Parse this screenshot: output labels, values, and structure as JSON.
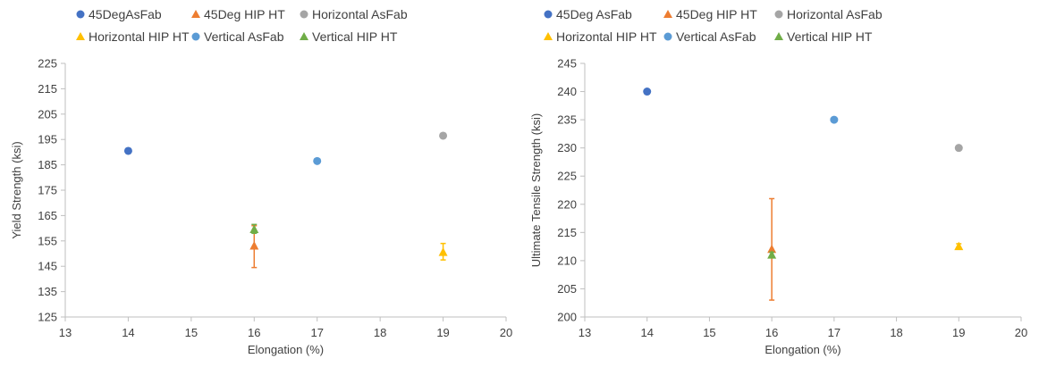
{
  "colors": {
    "dark_blue": "#4472C4",
    "orange": "#ED7D31",
    "gray": "#A5A5A5",
    "gold": "#FFC000",
    "light_blue": "#5B9BD5",
    "green": "#70AD47",
    "axis": "#BFBFBF",
    "text": "#404040"
  },
  "chart_data": [
    {
      "type": "scatter",
      "title": "",
      "xlabel": "Elongation (%)",
      "ylabel": "Yield Strength (ksi)",
      "xlim": [
        13,
        20
      ],
      "ylim": [
        125,
        225
      ],
      "xticks": [
        13,
        14,
        15,
        16,
        17,
        18,
        19,
        20
      ],
      "yticks": [
        125,
        135,
        145,
        155,
        165,
        175,
        185,
        195,
        205,
        215,
        225
      ],
      "grid": false,
      "legend_position": "top",
      "series": [
        {
          "name": "45DegAsFab",
          "marker": "circle",
          "color": "#4472C4",
          "points": [
            {
              "x": 14,
              "y": 190.5
            }
          ]
        },
        {
          "name": "45Deg HIP HT",
          "marker": "triangle",
          "color": "#ED7D31",
          "points": [
            {
              "x": 16,
              "y": 153,
              "err_low": 144.5,
              "err_high": 161
            }
          ]
        },
        {
          "name": "Horizontal AsFab",
          "marker": "circle",
          "color": "#A5A5A5",
          "points": [
            {
              "x": 19,
              "y": 196.5
            }
          ]
        },
        {
          "name": "Horizontal HIP HT",
          "marker": "triangle",
          "color": "#FFC000",
          "points": [
            {
              "x": 19,
              "y": 150.5,
              "err_low": 147.5,
              "err_high": 154
            }
          ]
        },
        {
          "name": "Vertical AsFab",
          "marker": "circle",
          "color": "#5B9BD5",
          "points": [
            {
              "x": 17,
              "y": 186.5
            }
          ]
        },
        {
          "name": "Vertical HIP HT",
          "marker": "triangle",
          "color": "#70AD47",
          "points": [
            {
              "x": 16,
              "y": 159.5,
              "err_low": 158,
              "err_high": 161.5
            }
          ]
        }
      ]
    },
    {
      "type": "scatter",
      "title": "",
      "xlabel": "Elongation (%)",
      "ylabel": "Ultimate Tensile Strength (ksi)",
      "xlim": [
        13,
        20
      ],
      "ylim": [
        200,
        245
      ],
      "xticks": [
        13,
        14,
        15,
        16,
        17,
        18,
        19,
        20
      ],
      "yticks": [
        200,
        205,
        210,
        215,
        220,
        225,
        230,
        235,
        240,
        245
      ],
      "grid": false,
      "legend_position": "top",
      "series": [
        {
          "name": "45Deg AsFab",
          "marker": "circle",
          "color": "#4472C4",
          "points": [
            {
              "x": 14,
              "y": 240
            }
          ]
        },
        {
          "name": "45Deg HIP HT",
          "marker": "triangle",
          "color": "#ED7D31",
          "points": [
            {
              "x": 16,
              "y": 212,
              "err_low": 203,
              "err_high": 221
            }
          ]
        },
        {
          "name": "Horizontal AsFab",
          "marker": "circle",
          "color": "#A5A5A5",
          "points": [
            {
              "x": 19,
              "y": 230
            }
          ]
        },
        {
          "name": "Horizontal HIP HT",
          "marker": "triangle",
          "color": "#FFC000",
          "points": [
            {
              "x": 19,
              "y": 212.5,
              "err_low": 212,
              "err_high": 213
            }
          ]
        },
        {
          "name": "Vertical AsFab",
          "marker": "circle",
          "color": "#5B9BD5",
          "points": [
            {
              "x": 17,
              "y": 235
            }
          ]
        },
        {
          "name": "Vertical HIP HT",
          "marker": "triangle",
          "color": "#70AD47",
          "points": [
            {
              "x": 16,
              "y": 211,
              "err_low": 210.5,
              "err_high": 211.5
            }
          ]
        }
      ]
    }
  ]
}
